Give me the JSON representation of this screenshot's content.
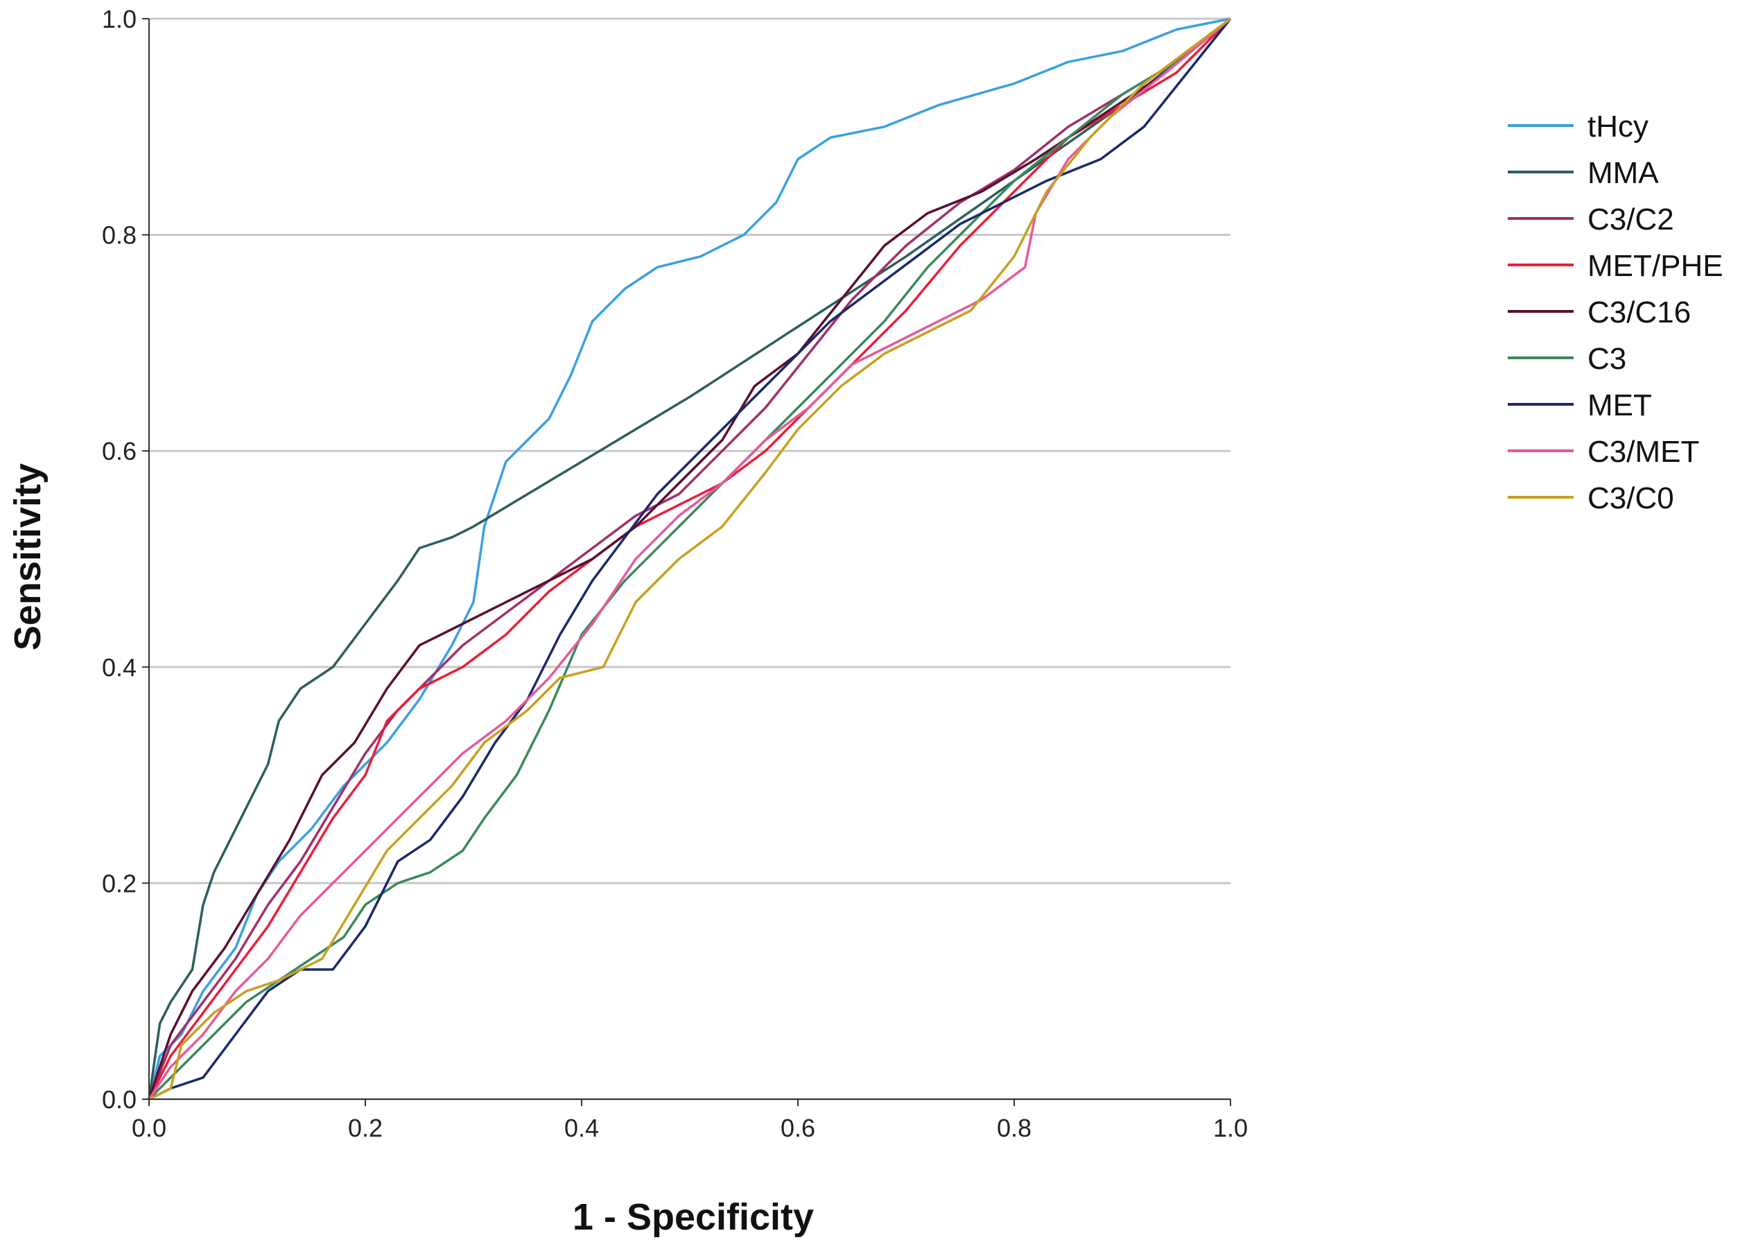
{
  "chart_data": {
    "type": "line",
    "xlabel": "1 - Specificity",
    "ylabel": "Sensitivity",
    "xlim": [
      0,
      1
    ],
    "ylim": [
      0,
      1
    ],
    "x_ticks": [
      "0.0",
      "0.2",
      "0.4",
      "0.6",
      "0.8",
      "1.0"
    ],
    "y_ticks": [
      "0.0",
      "0.2",
      "0.4",
      "0.6",
      "0.8",
      "1.0"
    ],
    "grid": "horizontal",
    "legend_position": "top-right",
    "series": [
      {
        "name": "tHcy",
        "color": "#3aa0e0",
        "points": [
          [
            0,
            0
          ],
          [
            0.01,
            0.04
          ],
          [
            0.03,
            0.06
          ],
          [
            0.05,
            0.1
          ],
          [
            0.08,
            0.14
          ],
          [
            0.1,
            0.19
          ],
          [
            0.12,
            0.22
          ],
          [
            0.15,
            0.25
          ],
          [
            0.18,
            0.29
          ],
          [
            0.22,
            0.33
          ],
          [
            0.25,
            0.37
          ],
          [
            0.28,
            0.42
          ],
          [
            0.3,
            0.46
          ],
          [
            0.31,
            0.53
          ],
          [
            0.33,
            0.59
          ],
          [
            0.35,
            0.61
          ],
          [
            0.37,
            0.63
          ],
          [
            0.39,
            0.67
          ],
          [
            0.41,
            0.72
          ],
          [
            0.44,
            0.75
          ],
          [
            0.47,
            0.77
          ],
          [
            0.51,
            0.78
          ],
          [
            0.55,
            0.8
          ],
          [
            0.58,
            0.83
          ],
          [
            0.6,
            0.87
          ],
          [
            0.63,
            0.89
          ],
          [
            0.68,
            0.9
          ],
          [
            0.73,
            0.92
          ],
          [
            0.8,
            0.94
          ],
          [
            0.85,
            0.96
          ],
          [
            0.9,
            0.97
          ],
          [
            0.95,
            0.99
          ],
          [
            1,
            1
          ]
        ]
      },
      {
        "name": "MMA",
        "color": "#2d5e5e",
        "points": [
          [
            0,
            0
          ],
          [
            0.01,
            0.07
          ],
          [
            0.02,
            0.09
          ],
          [
            0.04,
            0.12
          ],
          [
            0.05,
            0.18
          ],
          [
            0.06,
            0.21
          ],
          [
            0.07,
            0.23
          ],
          [
            0.09,
            0.27
          ],
          [
            0.11,
            0.31
          ],
          [
            0.12,
            0.35
          ],
          [
            0.14,
            0.38
          ],
          [
            0.17,
            0.4
          ],
          [
            0.2,
            0.44
          ],
          [
            0.23,
            0.48
          ],
          [
            0.25,
            0.51
          ],
          [
            0.28,
            0.52
          ],
          [
            0.3,
            0.53
          ],
          [
            0.5,
            0.65
          ],
          [
            0.7,
            0.78
          ],
          [
            0.8,
            0.85
          ],
          [
            0.9,
            0.92
          ],
          [
            1,
            1
          ]
        ]
      },
      {
        "name": "C3/C2",
        "color": "#a0306a",
        "points": [
          [
            0,
            0
          ],
          [
            0.02,
            0.05
          ],
          [
            0.05,
            0.09
          ],
          [
            0.08,
            0.13
          ],
          [
            0.11,
            0.18
          ],
          [
            0.14,
            0.22
          ],
          [
            0.17,
            0.27
          ],
          [
            0.2,
            0.32
          ],
          [
            0.23,
            0.36
          ],
          [
            0.26,
            0.39
          ],
          [
            0.29,
            0.42
          ],
          [
            0.33,
            0.45
          ],
          [
            0.37,
            0.48
          ],
          [
            0.41,
            0.51
          ],
          [
            0.45,
            0.54
          ],
          [
            0.49,
            0.56
          ],
          [
            0.53,
            0.6
          ],
          [
            0.57,
            0.64
          ],
          [
            0.61,
            0.69
          ],
          [
            0.65,
            0.74
          ],
          [
            0.7,
            0.79
          ],
          [
            0.75,
            0.83
          ],
          [
            0.8,
            0.86
          ],
          [
            0.85,
            0.9
          ],
          [
            0.9,
            0.93
          ],
          [
            0.95,
            0.96
          ],
          [
            1,
            1
          ]
        ]
      },
      {
        "name": "MET/PHE",
        "color": "#e8203a",
        "points": [
          [
            0,
            0
          ],
          [
            0.02,
            0.04
          ],
          [
            0.05,
            0.08
          ],
          [
            0.08,
            0.12
          ],
          [
            0.11,
            0.16
          ],
          [
            0.14,
            0.21
          ],
          [
            0.17,
            0.26
          ],
          [
            0.2,
            0.3
          ],
          [
            0.22,
            0.35
          ],
          [
            0.25,
            0.38
          ],
          [
            0.29,
            0.4
          ],
          [
            0.33,
            0.43
          ],
          [
            0.37,
            0.47
          ],
          [
            0.41,
            0.5
          ],
          [
            0.45,
            0.53
          ],
          [
            0.49,
            0.55
          ],
          [
            0.53,
            0.57
          ],
          [
            0.57,
            0.6
          ],
          [
            0.61,
            0.64
          ],
          [
            0.65,
            0.68
          ],
          [
            0.7,
            0.73
          ],
          [
            0.75,
            0.79
          ],
          [
            0.8,
            0.84
          ],
          [
            0.85,
            0.89
          ],
          [
            0.9,
            0.92
          ],
          [
            0.95,
            0.95
          ],
          [
            1,
            1
          ]
        ]
      },
      {
        "name": "C3/C16",
        "color": "#5a1030",
        "points": [
          [
            0,
            0
          ],
          [
            0.02,
            0.06
          ],
          [
            0.04,
            0.1
          ],
          [
            0.07,
            0.14
          ],
          [
            0.1,
            0.19
          ],
          [
            0.13,
            0.24
          ],
          [
            0.16,
            0.3
          ],
          [
            0.19,
            0.33
          ],
          [
            0.22,
            0.38
          ],
          [
            0.25,
            0.42
          ],
          [
            0.29,
            0.44
          ],
          [
            0.33,
            0.46
          ],
          [
            0.37,
            0.48
          ],
          [
            0.41,
            0.5
          ],
          [
            0.45,
            0.53
          ],
          [
            0.49,
            0.57
          ],
          [
            0.53,
            0.61
          ],
          [
            0.56,
            0.66
          ],
          [
            0.6,
            0.69
          ],
          [
            0.64,
            0.74
          ],
          [
            0.68,
            0.79
          ],
          [
            0.72,
            0.82
          ],
          [
            0.77,
            0.84
          ],
          [
            0.82,
            0.87
          ],
          [
            0.88,
            0.91
          ],
          [
            0.94,
            0.95
          ],
          [
            1,
            1
          ]
        ]
      },
      {
        "name": "C3",
        "color": "#3a8a5a",
        "points": [
          [
            0,
            0
          ],
          [
            0.03,
            0.03
          ],
          [
            0.06,
            0.06
          ],
          [
            0.09,
            0.09
          ],
          [
            0.12,
            0.11
          ],
          [
            0.15,
            0.13
          ],
          [
            0.18,
            0.15
          ],
          [
            0.2,
            0.18
          ],
          [
            0.23,
            0.2
          ],
          [
            0.26,
            0.21
          ],
          [
            0.29,
            0.23
          ],
          [
            0.31,
            0.26
          ],
          [
            0.34,
            0.3
          ],
          [
            0.37,
            0.36
          ],
          [
            0.4,
            0.43
          ],
          [
            0.44,
            0.48
          ],
          [
            0.48,
            0.52
          ],
          [
            0.52,
            0.56
          ],
          [
            0.56,
            0.6
          ],
          [
            0.6,
            0.64
          ],
          [
            0.64,
            0.68
          ],
          [
            0.68,
            0.72
          ],
          [
            0.72,
            0.77
          ],
          [
            0.76,
            0.81
          ],
          [
            0.8,
            0.85
          ],
          [
            0.85,
            0.89
          ],
          [
            0.9,
            0.93
          ],
          [
            0.95,
            0.96
          ],
          [
            1,
            1
          ]
        ]
      },
      {
        "name": "MET",
        "color": "#1a2a6a",
        "points": [
          [
            0,
            0
          ],
          [
            0.02,
            0.01
          ],
          [
            0.05,
            0.02
          ],
          [
            0.08,
            0.06
          ],
          [
            0.11,
            0.1
          ],
          [
            0.14,
            0.12
          ],
          [
            0.17,
            0.12
          ],
          [
            0.2,
            0.16
          ],
          [
            0.23,
            0.22
          ],
          [
            0.26,
            0.24
          ],
          [
            0.29,
            0.28
          ],
          [
            0.32,
            0.33
          ],
          [
            0.35,
            0.37
          ],
          [
            0.38,
            0.43
          ],
          [
            0.41,
            0.48
          ],
          [
            0.44,
            0.52
          ],
          [
            0.47,
            0.56
          ],
          [
            0.51,
            0.6
          ],
          [
            0.55,
            0.64
          ],
          [
            0.59,
            0.68
          ],
          [
            0.63,
            0.72
          ],
          [
            0.67,
            0.75
          ],
          [
            0.71,
            0.78
          ],
          [
            0.75,
            0.81
          ],
          [
            0.79,
            0.83
          ],
          [
            0.83,
            0.85
          ],
          [
            0.88,
            0.87
          ],
          [
            0.92,
            0.9
          ],
          [
            0.96,
            0.95
          ],
          [
            1,
            1
          ]
        ]
      },
      {
        "name": "C3/MET",
        "color": "#e65a9a",
        "points": [
          [
            0,
            0
          ],
          [
            0.02,
            0.03
          ],
          [
            0.05,
            0.06
          ],
          [
            0.08,
            0.1
          ],
          [
            0.11,
            0.13
          ],
          [
            0.14,
            0.17
          ],
          [
            0.17,
            0.2
          ],
          [
            0.2,
            0.23
          ],
          [
            0.23,
            0.26
          ],
          [
            0.26,
            0.29
          ],
          [
            0.29,
            0.32
          ],
          [
            0.33,
            0.35
          ],
          [
            0.37,
            0.39
          ],
          [
            0.41,
            0.44
          ],
          [
            0.45,
            0.5
          ],
          [
            0.49,
            0.54
          ],
          [
            0.53,
            0.57
          ],
          [
            0.57,
            0.61
          ],
          [
            0.61,
            0.64
          ],
          [
            0.65,
            0.68
          ],
          [
            0.69,
            0.7
          ],
          [
            0.73,
            0.72
          ],
          [
            0.77,
            0.74
          ],
          [
            0.81,
            0.77
          ],
          [
            0.82,
            0.82
          ],
          [
            0.85,
            0.87
          ],
          [
            0.89,
            0.91
          ],
          [
            0.94,
            0.95
          ],
          [
            1,
            1
          ]
        ]
      },
      {
        "name": "C3/C0",
        "color": "#c8a020",
        "points": [
          [
            0,
            0
          ],
          [
            0.02,
            0.01
          ],
          [
            0.03,
            0.05
          ],
          [
            0.06,
            0.08
          ],
          [
            0.09,
            0.1
          ],
          [
            0.12,
            0.11
          ],
          [
            0.16,
            0.13
          ],
          [
            0.19,
            0.18
          ],
          [
            0.22,
            0.23
          ],
          [
            0.25,
            0.26
          ],
          [
            0.28,
            0.29
          ],
          [
            0.31,
            0.33
          ],
          [
            0.35,
            0.36
          ],
          [
            0.38,
            0.39
          ],
          [
            0.42,
            0.4
          ],
          [
            0.45,
            0.46
          ],
          [
            0.49,
            0.5
          ],
          [
            0.53,
            0.53
          ],
          [
            0.57,
            0.58
          ],
          [
            0.6,
            0.62
          ],
          [
            0.64,
            0.66
          ],
          [
            0.68,
            0.69
          ],
          [
            0.72,
            0.71
          ],
          [
            0.76,
            0.73
          ],
          [
            0.8,
            0.78
          ],
          [
            0.83,
            0.84
          ],
          [
            0.87,
            0.89
          ],
          [
            0.92,
            0.94
          ],
          [
            0.96,
            0.97
          ],
          [
            1,
            1
          ]
        ]
      }
    ]
  }
}
